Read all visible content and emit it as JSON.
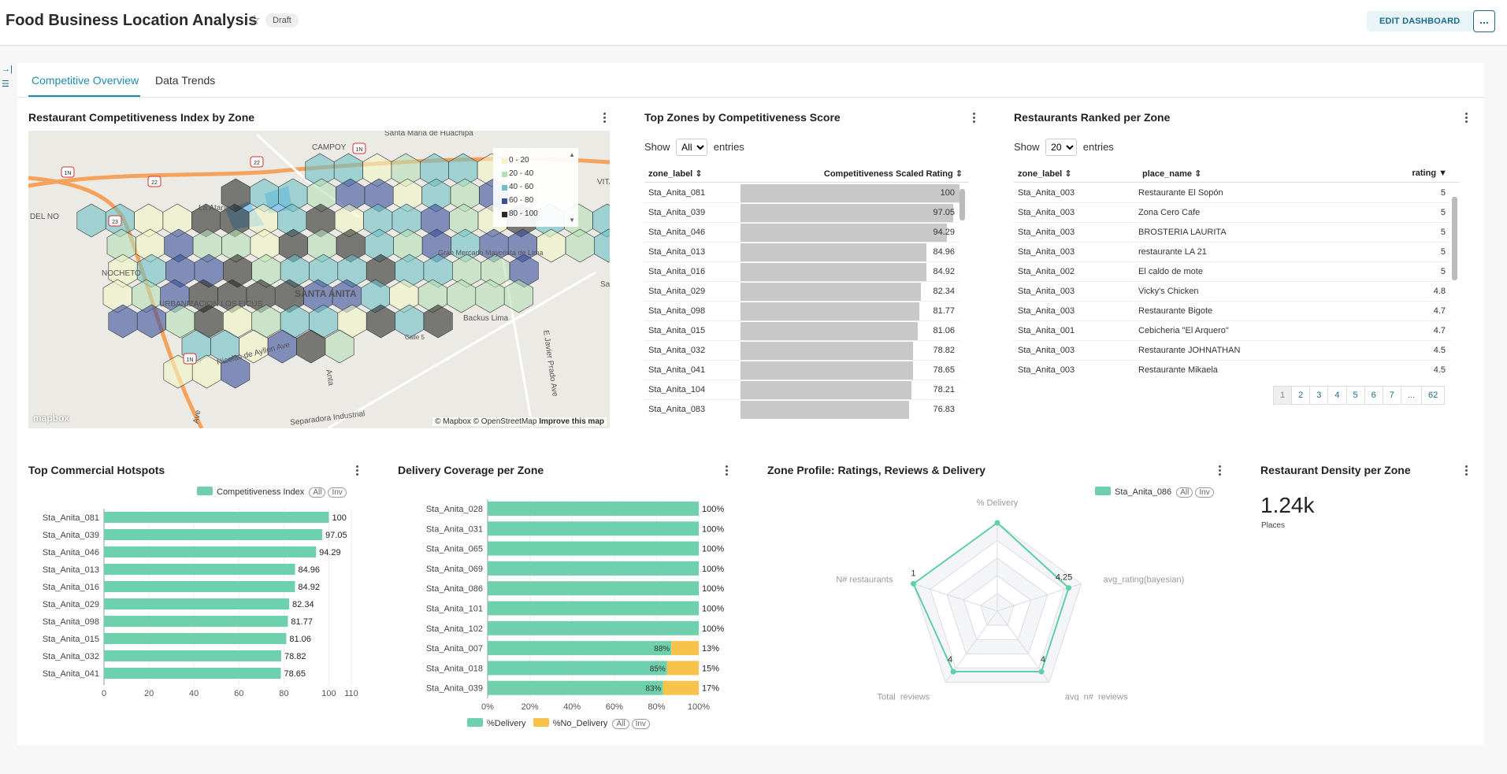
{
  "header": {
    "title": "Food Business Location Analysis",
    "draft_badge": "Draft",
    "edit_button": "EDIT DASHBOARD",
    "more_button": "..."
  },
  "tabs": [
    {
      "label": "Competitive Overview",
      "active": true
    },
    {
      "label": "Data Trends",
      "active": false
    }
  ],
  "map_card": {
    "title": "Restaurant Competitiveness Index by Zone",
    "legend": [
      {
        "label": "0 - 20",
        "color": "#f2f5c8"
      },
      {
        "label": "20 - 40",
        "color": "#b6dfb8"
      },
      {
        "label": "40 - 60",
        "color": "#6cbfc6"
      },
      {
        "label": "60 - 80",
        "color": "#3a4f9c"
      },
      {
        "label": "80 - 100",
        "color": "#2a2a2a"
      }
    ],
    "place_labels": [
      "Santa Maria de Huachipa",
      "La Atarjea",
      "CAMPOY",
      "SANTA ANITA",
      "URBANIZACION LOS FICUS",
      "Gran Mercado Mayorista de Lima",
      "Backus Lima",
      "Nicolas de Ayllon Ave",
      "Separadora Industrial",
      "E Javier Prado Ave",
      "NOCHETO",
      "DEL NO",
      "VITA",
      "Sa",
      "Anta",
      "Calle 5",
      "Ave"
    ],
    "road_shields": [
      "1N",
      "22",
      "22",
      "1N",
      "23",
      "1N"
    ],
    "attribution": "© Mapbox © OpenStreetMap",
    "improve_link": "Improve this map",
    "logo": "mapbox"
  },
  "top_zones": {
    "title": "Top Zones by Competitiveness Score",
    "show_label": "Show",
    "show_value": "All",
    "entries_label": "entries",
    "columns": [
      "zone_label",
      "Competitiveness Scaled Rating"
    ],
    "rows": [
      {
        "zone": "Sta_Anita_081",
        "value": 100,
        "label": "100"
      },
      {
        "zone": "Sta_Anita_039",
        "value": 97.05,
        "label": "97.05"
      },
      {
        "zone": "Sta_Anita_046",
        "value": 94.29,
        "label": "94.29"
      },
      {
        "zone": "Sta_Anita_013",
        "value": 84.96,
        "label": "84.96"
      },
      {
        "zone": "Sta_Anita_016",
        "value": 84.92,
        "label": "84.92"
      },
      {
        "zone": "Sta_Anita_029",
        "value": 82.34,
        "label": "82.34"
      },
      {
        "zone": "Sta_Anita_098",
        "value": 81.77,
        "label": "81.77"
      },
      {
        "zone": "Sta_Anita_015",
        "value": 81.06,
        "label": "81.06"
      },
      {
        "zone": "Sta_Anita_032",
        "value": 78.82,
        "label": "78.82"
      },
      {
        "zone": "Sta_Anita_041",
        "value": 78.65,
        "label": "78.65"
      },
      {
        "zone": "Sta_Anita_104",
        "value": 78.21,
        "label": "78.21"
      },
      {
        "zone": "Sta_Anita_083",
        "value": 76.83,
        "label": "76.83"
      }
    ]
  },
  "ranked": {
    "title": "Restaurants Ranked per Zone",
    "show_label": "Show",
    "show_value": "20",
    "entries_label": "entries",
    "columns": [
      "zone_label",
      "place_name",
      "rating"
    ],
    "rows": [
      {
        "zone": "Sta_Anita_003",
        "place": "Restaurante El Sopón",
        "rating": "5"
      },
      {
        "zone": "Sta_Anita_003",
        "place": "Zona Cero Cafe",
        "rating": "5"
      },
      {
        "zone": "Sta_Anita_003",
        "place": "BROSTERIA LAURITA",
        "rating": "5"
      },
      {
        "zone": "Sta_Anita_003",
        "place": "restaurante LA 21",
        "rating": "5"
      },
      {
        "zone": "Sta_Anita_002",
        "place": "El caldo de mote",
        "rating": "5"
      },
      {
        "zone": "Sta_Anita_003",
        "place": "Vicky's Chicken",
        "rating": "4.8"
      },
      {
        "zone": "Sta_Anita_003",
        "place": "Restaurante Bigote",
        "rating": "4.7"
      },
      {
        "zone": "Sta_Anita_001",
        "place": "Cebicheria \"El Arquero\"",
        "rating": "4.7"
      },
      {
        "zone": "Sta_Anita_003",
        "place": "Restaurante JOHNATHAN",
        "rating": "4.5"
      },
      {
        "zone": "Sta_Anita_003",
        "place": "Restaurante Mikaela",
        "rating": "4.5"
      }
    ],
    "pages": [
      "1",
      "2",
      "3",
      "4",
      "5",
      "6",
      "7",
      "...",
      "62"
    ]
  },
  "hotspots": {
    "title": "Top Commercial Hotspots",
    "legend": "Competitiveness Index",
    "all_label": "All",
    "inv_label": "Inv",
    "color": "#6fd0ae"
  },
  "delivery": {
    "title": "Delivery Coverage per Zone",
    "legend_delivery": "%Delivery",
    "legend_no_delivery": "%No_Delivery",
    "all_label": "All",
    "inv_label": "Inv",
    "color_delivery": "#6fd0ae",
    "color_no_delivery": "#f7c34a"
  },
  "radar": {
    "title": "Zone Profile: Ratings, Reviews & Delivery",
    "legend": "Sta_Anita_086",
    "all_label": "All",
    "inv_label": "Inv"
  },
  "density": {
    "title": "Restaurant Density per Zone",
    "value": "1.24k",
    "subtitle": "Places"
  },
  "chart_data": [
    {
      "type": "bar",
      "orientation": "horizontal",
      "title": "Top Commercial Hotspots",
      "categories": [
        "Sta_Anita_081",
        "Sta_Anita_039",
        "Sta_Anita_046",
        "Sta_Anita_013",
        "Sta_Anita_016",
        "Sta_Anita_029",
        "Sta_Anita_098",
        "Sta_Anita_015",
        "Sta_Anita_032",
        "Sta_Anita_041"
      ],
      "series": [
        {
          "name": "Competitiveness Index",
          "values": [
            100,
            97.05,
            94.29,
            84.96,
            84.92,
            82.34,
            81.77,
            81.06,
            78.82,
            78.65
          ]
        }
      ],
      "value_labels": [
        "100",
        "97.05",
        "94.29",
        "84.96",
        "84.92",
        "82.34",
        "81.77",
        "81.06",
        "78.82",
        "78.65"
      ],
      "xlim": [
        0,
        110
      ],
      "xticks": [
        "0",
        "20",
        "40",
        "60",
        "80",
        "100",
        "110"
      ]
    },
    {
      "type": "bar",
      "orientation": "horizontal",
      "stacked": true,
      "title": "Delivery Coverage per Zone",
      "categories": [
        "Sta_Anita_028",
        "Sta_Anita_031",
        "Sta_Anita_065",
        "Sta_Anita_069",
        "Sta_Anita_086",
        "Sta_Anita_101",
        "Sta_Anita_102",
        "Sta_Anita_007",
        "Sta_Anita_018",
        "Sta_Anita_039"
      ],
      "series": [
        {
          "name": "%Delivery",
          "values": [
            100,
            100,
            100,
            100,
            100,
            100,
            100,
            88,
            85,
            83
          ]
        },
        {
          "name": "%No_Delivery",
          "values": [
            0,
            0,
            0,
            0,
            0,
            0,
            0,
            13,
            15,
            17
          ]
        }
      ],
      "end_labels": [
        "100%",
        "100%",
        "100%",
        "100%",
        "100%",
        "100%",
        "100%",
        "13%",
        "15%",
        "17%"
      ],
      "inner_labels": [
        "",
        "",
        "",
        "",
        "",
        "",
        "",
        "88%",
        "85%",
        "83%"
      ],
      "xlim": [
        0,
        100
      ],
      "xticks": [
        "0%",
        "20%",
        "40%",
        "60%",
        "80%",
        "100%"
      ]
    },
    {
      "type": "radar",
      "title": "Zone Profile: Ratings, Reviews & Delivery",
      "axes": [
        "% Delivery",
        "avg_rating(bayesian)",
        "avg_n#_reviews",
        "Total_reviews",
        "N# restaurants"
      ],
      "series": [
        {
          "name": "Sta_Anita_086",
          "values": [
            1,
            0.85,
            0.85,
            0.85,
            1
          ]
        }
      ],
      "point_labels": [
        "",
        "4.25",
        "4",
        "4",
        "1"
      ]
    }
  ]
}
